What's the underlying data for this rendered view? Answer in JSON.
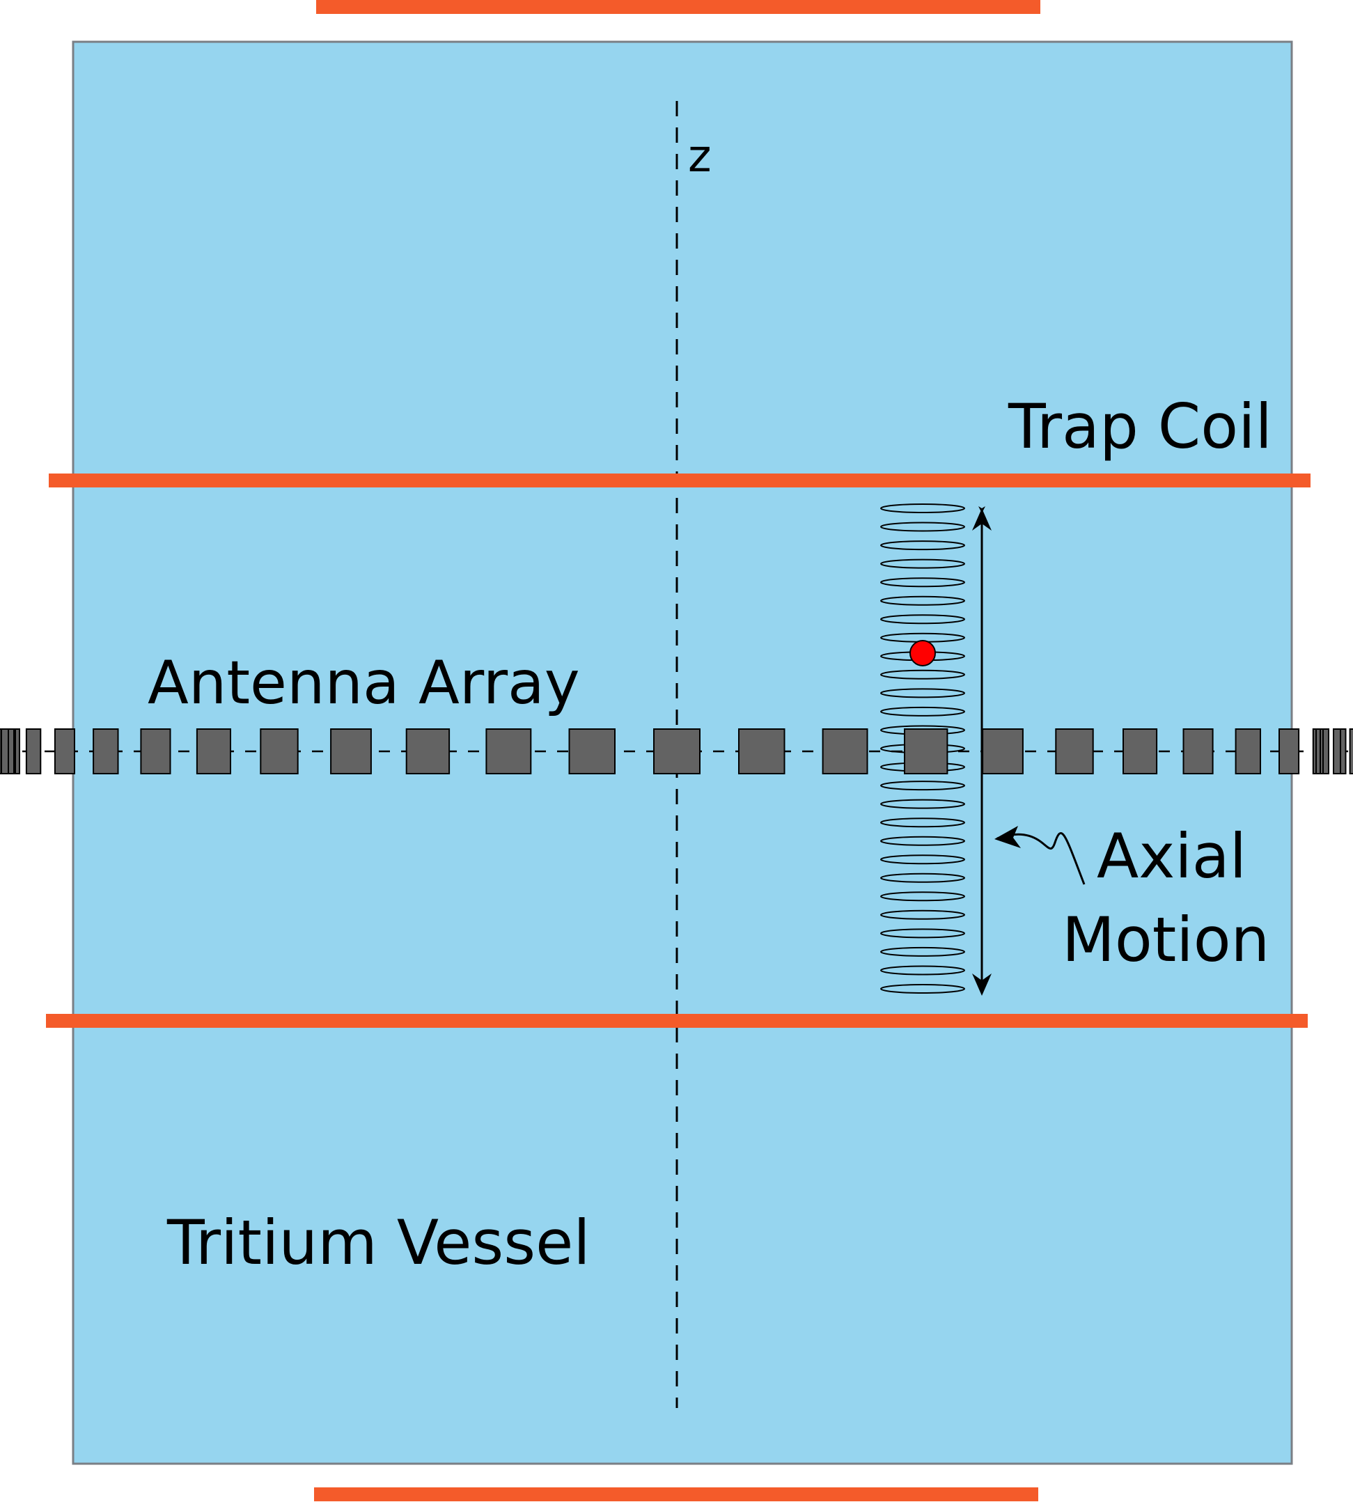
{
  "labels": {
    "axis": "z",
    "trap_coil": "Trap Coil",
    "antenna_array": "Antenna Array",
    "axial_motion_line1": "Axial",
    "axial_motion_line2": "Motion",
    "tritium_vessel": "Tritium Vessel"
  },
  "colors": {
    "vessel_fill": "#96d5ef",
    "vessel_border": "#7a7f85",
    "coil": "#f45b2a",
    "antenna": "#636363",
    "electron": "#ff0000",
    "line": "#000000"
  },
  "antenna": {
    "element_count": 25
  },
  "helix": {
    "turns": 27
  }
}
